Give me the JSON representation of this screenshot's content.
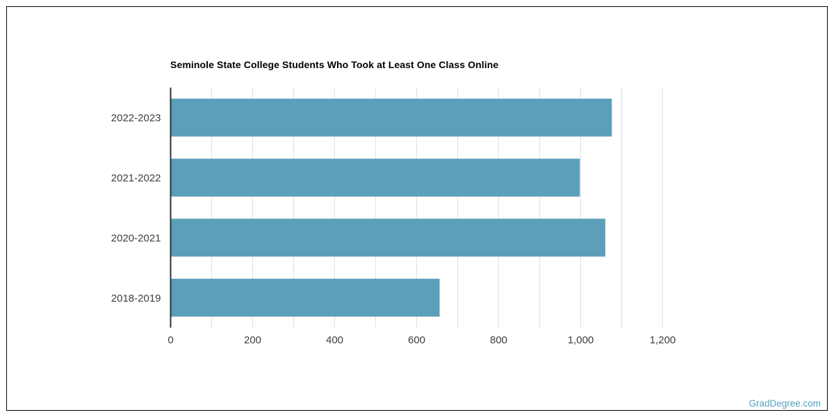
{
  "page": {
    "background": "#ffffff",
    "border_color": "#000000"
  },
  "watermark": {
    "text": "GradDegree.com",
    "color": "#54a1bf"
  },
  "chart_data": {
    "type": "bar",
    "orientation": "horizontal",
    "title": "Seminole State College Students Who Took at Least One Class Online",
    "categories": [
      "2022-2023",
      "2021-2022",
      "2020-2021",
      "2018-2019"
    ],
    "values": [
      1076,
      998,
      1060,
      656
    ],
    "x_tick_labels": [
      "0",
      "200",
      "400",
      "600",
      "800",
      "1,000",
      "1,200"
    ],
    "x_tick_values": [
      0,
      200,
      400,
      600,
      800,
      1000,
      1200
    ],
    "xlim": [
      0,
      1200
    ],
    "grid_step": 100,
    "grid": true,
    "legend": false,
    "bar_color": "#5b9fba",
    "grid_color": "#e0e0e0",
    "axis_color": "#2f2f2f",
    "label_color": "#3d3d3d"
  }
}
